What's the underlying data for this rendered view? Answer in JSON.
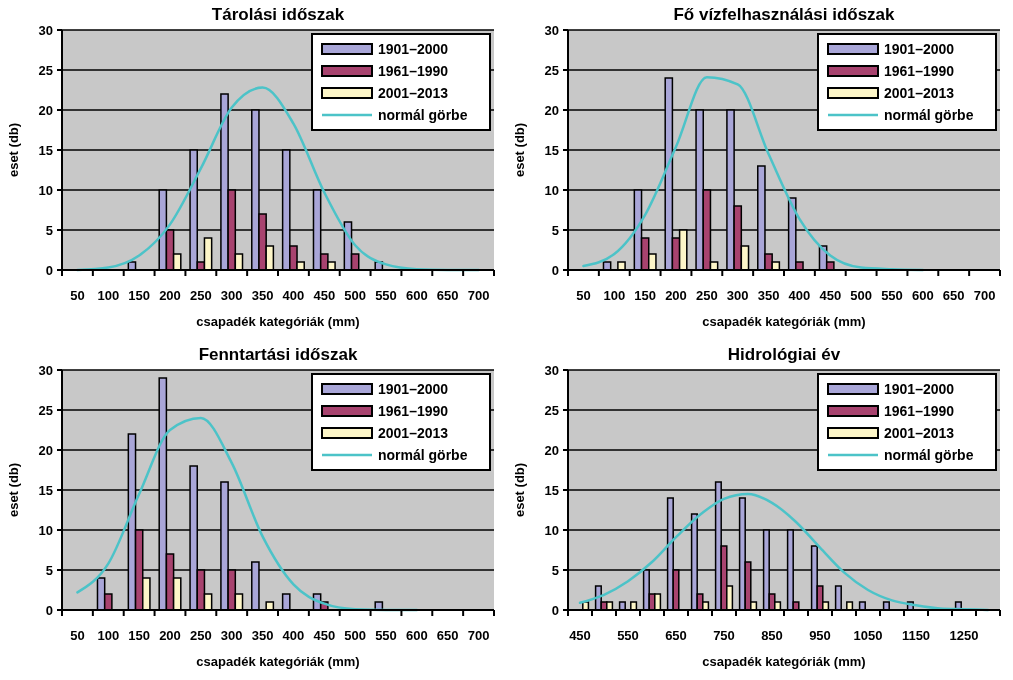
{
  "chart_data": [
    {
      "type": "bar",
      "title": "Tárolási időszak",
      "xlabel": "csapadék kategóriák (mm)",
      "ylabel": "eset (db)",
      "categories": [
        "50",
        "100",
        "150",
        "200",
        "250",
        "300",
        "350",
        "400",
        "450",
        "500",
        "550",
        "600",
        "650",
        "700"
      ],
      "ylim": [
        0,
        30
      ],
      "yticks": [
        0,
        5,
        10,
        15,
        20,
        25,
        30
      ],
      "grid": "y",
      "legend": "top right",
      "series": [
        {
          "name": "1901–2000",
          "color": "#a9a6d8",
          "values": [
            0,
            0,
            1,
            10,
            15,
            22,
            20,
            15,
            10,
            6,
            1,
            0,
            0,
            0
          ]
        },
        {
          "name": "1961–1990",
          "color": "#a8436f",
          "values": [
            0,
            0,
            0,
            5,
            1,
            10,
            7,
            3,
            2,
            2,
            0,
            0,
            0,
            0
          ]
        },
        {
          "name": "2001–2013",
          "color": "#fdf6c8",
          "values": [
            0,
            0,
            0,
            2,
            4,
            2,
            3,
            1,
            1,
            0,
            0,
            0,
            0,
            0
          ]
        },
        {
          "name": "normál görbe",
          "type": "line",
          "color": "#4cc3c8",
          "values": [
            0,
            0.3,
            1.8,
            5.7,
            12.7,
            20.3,
            22.8,
            18.3,
            9.7,
            3.1,
            0.7,
            0.1,
            0,
            0
          ]
        }
      ]
    },
    {
      "type": "bar",
      "title": "Fő vízfelhasználási időszak",
      "xlabel": "csapadék kategóriák (mm)",
      "ylabel": "eset (db)",
      "categories": [
        "50",
        "100",
        "150",
        "200",
        "250",
        "300",
        "350",
        "400",
        "450",
        "500",
        "550",
        "600",
        "650",
        "700"
      ],
      "ylim": [
        0,
        30
      ],
      "yticks": [
        0,
        5,
        10,
        15,
        20,
        25,
        30
      ],
      "grid": "y",
      "legend": "top right",
      "series": [
        {
          "name": "1901–2000",
          "color": "#a9a6d8",
          "values": [
            0,
            1,
            10,
            24,
            20,
            20,
            13,
            9,
            3,
            0,
            0,
            0,
            0,
            0
          ]
        },
        {
          "name": "1961–1990",
          "color": "#a8436f",
          "values": [
            0,
            0,
            4,
            4,
            10,
            8,
            2,
            1,
            1,
            0,
            0,
            0,
            0,
            0
          ]
        },
        {
          "name": "2001–2013",
          "color": "#fdf6c8",
          "values": [
            0,
            1,
            2,
            5,
            1,
            3,
            1,
            0,
            0,
            0,
            0,
            0,
            0,
            0
          ]
        },
        {
          "name": "normál görbe",
          "type": "line",
          "color": "#4cc3c8",
          "values": [
            0.5,
            2,
            6.9,
            15.4,
            24.1,
            23.2,
            14.5,
            6.4,
            1.8,
            0.3,
            0.1,
            0,
            null,
            null
          ]
        }
      ]
    },
    {
      "type": "bar",
      "title": "Fenntartási időszak",
      "xlabel": "csapadék kategóriák (mm)",
      "ylabel": "eset (db)",
      "categories": [
        "50",
        "100",
        "150",
        "200",
        "250",
        "300",
        "350",
        "400",
        "450",
        "500",
        "550",
        "600",
        "650",
        "700"
      ],
      "ylim": [
        0,
        30
      ],
      "yticks": [
        0,
        5,
        10,
        15,
        20,
        25,
        30
      ],
      "grid": "y",
      "legend": "top right",
      "series": [
        {
          "name": "1901–2000",
          "color": "#a9a6d8",
          "values": [
            0,
            4,
            22,
            29,
            18,
            16,
            6,
            2,
            2,
            0,
            1,
            0,
            0,
            0
          ]
        },
        {
          "name": "1961–1990",
          "color": "#a8436f",
          "values": [
            0,
            2,
            10,
            7,
            5,
            5,
            0,
            0,
            1,
            0,
            0,
            0,
            0,
            0
          ]
        },
        {
          "name": "2001–2013",
          "color": "#fdf6c8",
          "values": [
            0,
            0,
            4,
            4,
            2,
            2,
            1,
            0,
            0,
            0,
            0,
            0,
            0,
            0
          ]
        },
        {
          "name": "normál görbe",
          "type": "line",
          "color": "#4cc3c8",
          "values": [
            2.2,
            5.8,
            14.5,
            22.5,
            24,
            18.4,
            9.2,
            3.2,
            0.8,
            0.1,
            0,
            0,
            null,
            null
          ]
        }
      ]
    },
    {
      "type": "bar",
      "title": "Hidrológiai év",
      "xlabel": "csapadék kategóriák (mm)",
      "ylabel": "eset (db)",
      "categories": [
        "450",
        null,
        "550",
        null,
        "650",
        null,
        "750",
        null,
        "850",
        null,
        "950",
        null,
        "1050",
        null,
        "1150",
        null,
        "1250",
        null
      ],
      "ylim": [
        0,
        30
      ],
      "yticks": [
        0,
        5,
        10,
        15,
        20,
        25,
        30
      ],
      "grid": "y",
      "legend": "top right",
      "series": [
        {
          "name": "1901–2000",
          "color": "#a9a6d8",
          "values": [
            0,
            3,
            1,
            5,
            14,
            12,
            16,
            14,
            10,
            10,
            8,
            3,
            1,
            1,
            1,
            0,
            1,
            0
          ]
        },
        {
          "name": "1961–1990",
          "color": "#a8436f",
          "values": [
            0,
            1,
            0,
            2,
            5,
            2,
            8,
            6,
            2,
            1,
            3,
            0,
            0,
            0,
            0,
            0,
            0,
            0
          ]
        },
        {
          "name": "2001–2013",
          "color": "#fdf6c8",
          "values": [
            1,
            1,
            1,
            2,
            0,
            1,
            3,
            1,
            1,
            0,
            1,
            1,
            0,
            0,
            0,
            0,
            0,
            0
          ]
        },
        {
          "name": "normál görbe",
          "type": "line",
          "color": "#4cc3c8",
          "values": [
            0.9,
            1.9,
            3.6,
            6,
            9.1,
            11.9,
            13.9,
            14.5,
            13.4,
            11,
            7.8,
            4.7,
            2.5,
            1.2,
            0.6,
            0.2,
            0.1,
            0
          ]
        }
      ]
    }
  ]
}
